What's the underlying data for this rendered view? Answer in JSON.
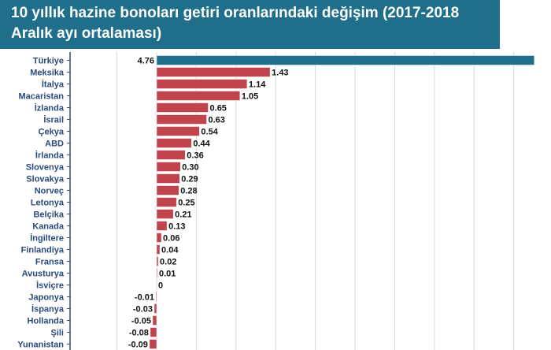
{
  "title": "10 yıllık hazine bonoları getiri oranlarındaki değişim (2017-2018 Aralık ayı ortalaması)",
  "colors": {
    "banner": "#1f6f8b",
    "highlight_bar": "#1f6f8b",
    "bar": "#c0444b",
    "grid": "#d9d9d9",
    "label_text": "#2a4a7a"
  },
  "chart_data": {
    "type": "bar",
    "orientation": "horizontal",
    "title": "10 yıllık hazine bonoları getiri oranlarındaki değişim (2017-2018 Aralık ayı ortalaması)",
    "xlabel": "",
    "ylabel": "",
    "grid": true,
    "xlim": [
      -0.7,
      4.9
    ],
    "highlight": "Türkiye",
    "categories": [
      "Türkiye",
      "Meksika",
      "İtalya",
      "Macaristan",
      "İzlanda",
      "İsrail",
      "Çekya",
      "ABD",
      "İrlanda",
      "Slovenya",
      "Slovakya",
      "Norveç",
      "Letonya",
      "Belçika",
      "Kanada",
      "İngiltere",
      "Finlandiya",
      "Fransa",
      "Avusturya",
      "İsviçre",
      "Japonya",
      "İspanya",
      "Hollanda",
      "Şili",
      "Yunanistan"
    ],
    "values": [
      4.76,
      1.43,
      1.14,
      1.05,
      0.65,
      0.63,
      0.54,
      0.44,
      0.36,
      0.3,
      0.29,
      0.28,
      0.25,
      0.21,
      0.13,
      0.06,
      0.04,
      0.02,
      0.01,
      0,
      -0.01,
      -0.03,
      -0.05,
      -0.08,
      -0.09
    ],
    "value_labels": [
      "4.76",
      "1.43",
      "1.14",
      "1.05",
      "0.65",
      "0.63",
      "0.54",
      "0.44",
      "0.36",
      "0.30",
      "0.29",
      "0.28",
      "0.25",
      "0.21",
      "0.13",
      "0.06",
      "0.04",
      "0.02",
      "0.01",
      "0",
      "-0.01",
      "-0.03",
      "-0.05",
      "-0.08",
      "-0.09"
    ]
  }
}
